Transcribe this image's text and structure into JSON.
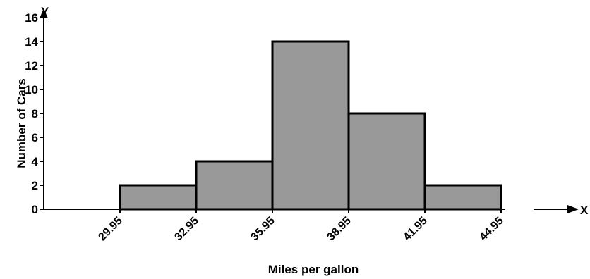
{
  "chart_data": {
    "type": "bar",
    "title": "",
    "xlabel": "Miles per gallon",
    "ylabel": "Number of Cars",
    "x_axis_letter": "X",
    "y_axis_letter": "Y",
    "bin_edges": [
      29.95,
      32.95,
      35.95,
      38.95,
      41.95,
      44.95
    ],
    "x_tick_labels": [
      "29.95",
      "32.95",
      "35.95",
      "38.95",
      "41.95",
      "44.95"
    ],
    "values": [
      2,
      4,
      14,
      8,
      2
    ],
    "ylim": [
      0,
      16
    ],
    "y_ticks": [
      0,
      2,
      4,
      6,
      8,
      10,
      12,
      14,
      16
    ],
    "y_tick_labels": [
      "0",
      "2",
      "4",
      "6",
      "8",
      "10",
      "12",
      "14",
      "16"
    ],
    "bar_color": "#999999",
    "grid": false
  }
}
